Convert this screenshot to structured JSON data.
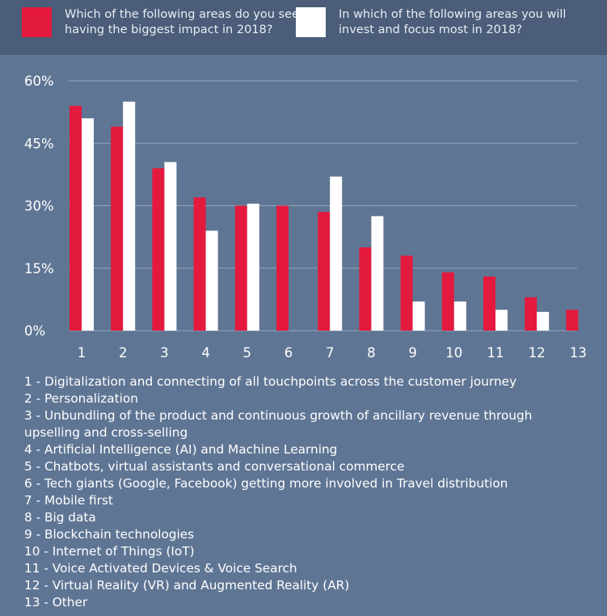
{
  "legend": [
    {
      "label": "Which of the following areas do you see having the biggest impact in 2018?",
      "color": "#e31a3d"
    },
    {
      "label": "In which of the following areas you will invest and focus most in 2018?",
      "color": "#ffffff"
    }
  ],
  "chart_data": {
    "type": "bar",
    "categories": [
      "1",
      "2",
      "3",
      "4",
      "5",
      "6",
      "7",
      "8",
      "9",
      "10",
      "11",
      "12",
      "13"
    ],
    "y_ticks": [
      "60%",
      "45%",
      "30%",
      "15%",
      "0%"
    ],
    "ylim": [
      0,
      60
    ],
    "grid": true,
    "legend_position": "top",
    "series": [
      {
        "name": "Which of the following areas do you see having the biggest impact in 2018?",
        "color": "#e31a3d",
        "values": [
          54,
          49,
          39,
          32,
          30,
          30,
          28.5,
          20,
          18,
          14,
          13,
          8,
          5
        ]
      },
      {
        "name": "In which of the following areas you will invest and focus most in 2018?",
        "color": "#ffffff",
        "values": [
          51,
          55,
          40.5,
          24,
          30.5,
          0,
          37,
          27.5,
          7,
          7,
          5,
          4.5,
          0
        ]
      }
    ]
  },
  "category_descriptions": [
    "1 - Digitalization and connecting of all touchpoints across the customer journey",
    "2 - Personalization",
    "3 - Unbundling of the product and continuous growth of ancillary revenue through upselling and cross-selling",
    "4 - Artificial Intelligence (AI) and Machine Learning",
    "5 - Chatbots, virtual assistants and conversational commerce",
    "6 - Tech giants (Google, Facebook) getting more involved in Travel distribution",
    "7 - Mobile first",
    "8 - Big data",
    "9 - Blockchain technologies",
    "10 - Internet of Things (IoT)",
    "11 - Voice Activated Devices & Voice Search",
    "12 - Virtual Reality (VR) and Augmented Reality (AR)",
    "13 - Other"
  ]
}
